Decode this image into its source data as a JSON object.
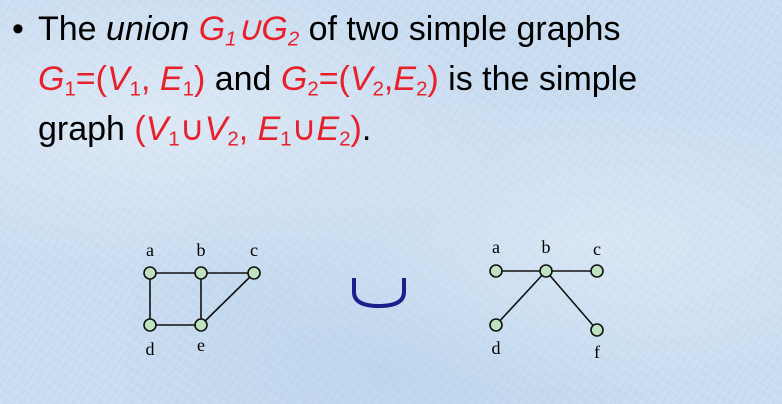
{
  "bullet_symbol": "•",
  "definition": {
    "line1": {
      "t1": "The ",
      "t2": "union",
      "t3": " G",
      "t4": "1",
      "t5": "∪G",
      "t6": "2",
      "t7": " of two simple graphs"
    },
    "line2": {
      "t1": "G",
      "t2": "1",
      "t3": "=(",
      "t4": "V",
      "t5": "1",
      "t6": ", ",
      "t7": "E",
      "t8": "1",
      "t9": ")",
      "t10": " and ",
      "t11": "G",
      "t12": "2",
      "t13": "=(",
      "t14": "V",
      "t15": "2",
      "t16": ",",
      "t17": "E",
      "t18": "2",
      "t19": ")",
      "t20": " is the simple"
    },
    "line3": {
      "t1": "graph ",
      "t2": "(",
      "t3": "V",
      "t4": "1",
      "t5": "∪",
      "t6": "V",
      "t7": "2",
      "t8": ", ",
      "t9": "E",
      "t10": "1",
      "t11": "∪",
      "t12": "E",
      "t13": "2",
      "t14": ")",
      "t15": "."
    }
  },
  "graph1": {
    "vertex_labels": [
      "a",
      "b",
      "c",
      "d",
      "e"
    ],
    "edges": [
      [
        "a",
        "b"
      ],
      [
        "a",
        "d"
      ],
      [
        "b",
        "e"
      ],
      [
        "d",
        "e"
      ],
      [
        "b",
        "c"
      ],
      [
        "c",
        "e"
      ]
    ]
  },
  "graph2": {
    "vertex_labels": [
      "a",
      "b",
      "c",
      "d",
      "f"
    ],
    "edges": [
      [
        "a",
        "b"
      ],
      [
        "b",
        "c"
      ],
      [
        "b",
        "d"
      ],
      [
        "b",
        "f"
      ]
    ]
  },
  "colors": {
    "text": "#000000",
    "highlight_red": "#e8202a",
    "node_fill": "#bfe3c0",
    "union_symbol": "#1a1f8c",
    "background": "#c9dcf0"
  }
}
